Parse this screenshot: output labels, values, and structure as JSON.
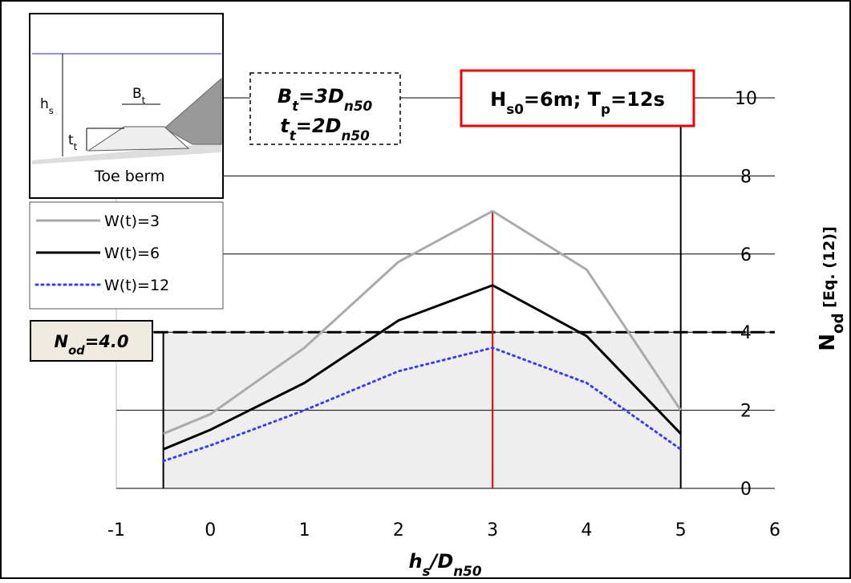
{
  "chart_data": {
    "type": "line",
    "x_label": [
      {
        "text": "h"
      },
      {
        "text": "s",
        "sub": true
      },
      {
        "text": "/D"
      },
      {
        "text": "n50",
        "sub": true
      }
    ],
    "y_label": [
      {
        "text": "N"
      },
      {
        "text": "od",
        "sub": true
      },
      {
        "text": " [Eq. (12)]"
      }
    ],
    "xlim": [
      -1,
      6
    ],
    "xticks": [
      -1,
      0,
      1,
      2,
      3,
      4,
      5,
      6
    ],
    "ylim": [
      0,
      10
    ],
    "yticks": [
      0,
      2,
      4,
      6,
      8,
      10
    ],
    "grid": true,
    "series": [
      {
        "name": "W(t)=3",
        "color": "#aaaaaa",
        "style": "solid",
        "x": [
          -0.5,
          0,
          1,
          2,
          3,
          4,
          4.5,
          5
        ],
        "values": [
          1.4,
          1.9,
          3.6,
          5.8,
          7.1,
          5.6,
          3.8,
          2.0
        ]
      },
      {
        "name": "W(t)=6",
        "color": "#000000",
        "style": "solid",
        "x": [
          -0.5,
          0,
          1,
          2,
          3,
          4,
          5
        ],
        "values": [
          1.0,
          1.5,
          2.7,
          4.3,
          5.2,
          3.9,
          1.4
        ]
      },
      {
        "name": "W(t)=12",
        "color": "#3b3bff",
        "style": "dotted",
        "x": [
          -0.5,
          0,
          1,
          2,
          3,
          4,
          5
        ],
        "values": [
          0.7,
          1.1,
          2.0,
          3.0,
          3.6,
          2.7,
          1.0
        ]
      }
    ],
    "threshold": {
      "value": 4.0,
      "label": [
        {
          "text": "N"
        },
        {
          "text": "od",
          "sub": true
        },
        {
          "text": "=4.0"
        }
      ]
    },
    "x_range": [
      -0.5,
      5
    ],
    "peak_x": 3,
    "berm_note": [
      [
        {
          "text": "B"
        },
        {
          "text": "t",
          "sub": true
        },
        {
          "text": "=3D"
        },
        {
          "text": "n50",
          "sub": true
        }
      ],
      [
        {
          "text": "t"
        },
        {
          "text": "t",
          "sub": true
        },
        {
          "text": "=2D"
        },
        {
          "text": "n50",
          "sub": true
        }
      ]
    ],
    "wave_note": [
      {
        "text": "H"
      },
      {
        "text": "s0",
        "sub": true
      },
      {
        "text": "=6m; "
      },
      {
        "text": "T"
      },
      {
        "text": "p",
        "sub": true
      },
      {
        "text": "=12s"
      }
    ],
    "inset": {
      "hs": [
        {
          "text": "h"
        },
        {
          "text": "s",
          "sub": true
        }
      ],
      "bt": [
        {
          "text": "B"
        },
        {
          "text": "t",
          "sub": true
        }
      ],
      "tt": [
        {
          "text": "t"
        },
        {
          "text": "t",
          "sub": true
        }
      ],
      "toe": "Toe berm"
    }
  }
}
